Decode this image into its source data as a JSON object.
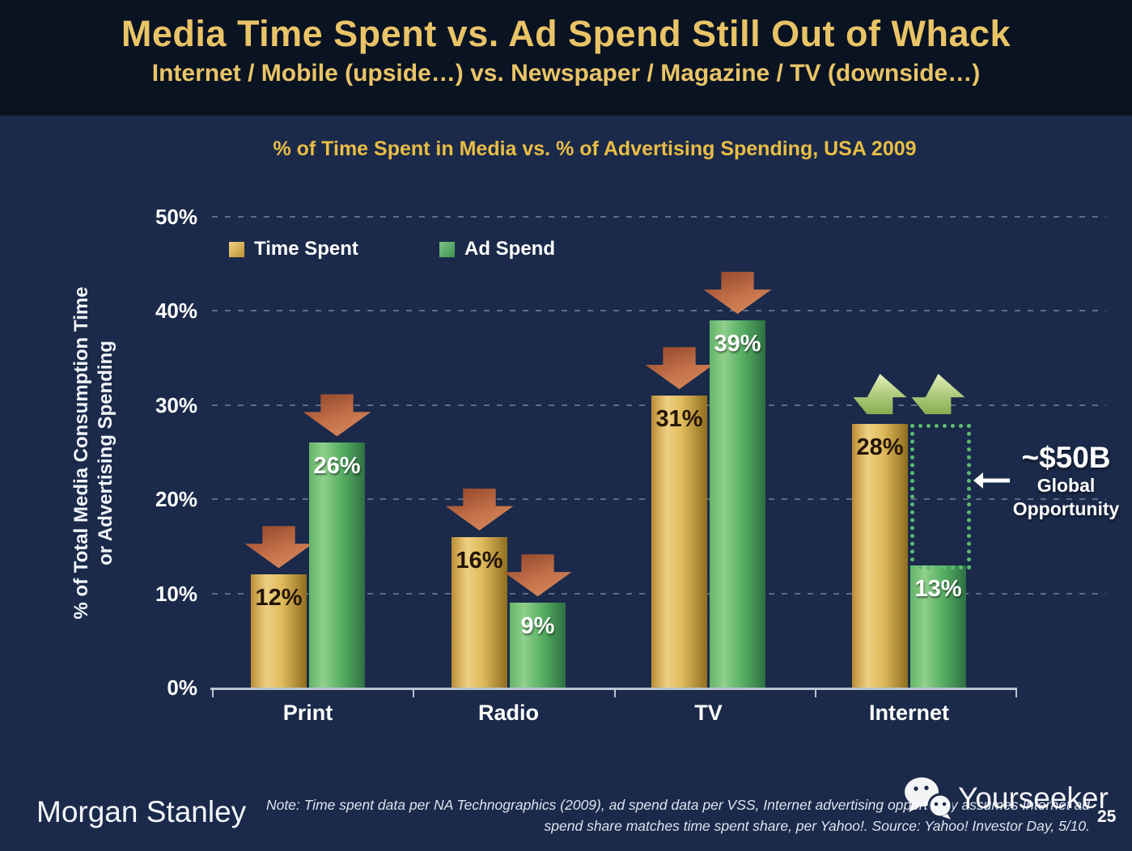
{
  "slide": {
    "title": "Media Time Spent vs. Ad Spend Still Out of Whack",
    "subtitle": "Internet / Mobile (upside…) vs. Newspaper / Magazine / TV (downside…)",
    "page_number": "25"
  },
  "chart_data": {
    "type": "bar",
    "title": "% of Time Spent in Media vs. % of Advertising Spending, USA 2009",
    "categories": [
      "Print",
      "Radio",
      "TV",
      "Internet"
    ],
    "series": [
      {
        "name": "Time Spent",
        "values": [
          12,
          16,
          31,
          28
        ],
        "color": "#e0bb5c",
        "label_style": "dark"
      },
      {
        "name": "Ad Spend",
        "values": [
          26,
          9,
          39,
          13
        ],
        "color": "#55ad62",
        "label_style": "white"
      }
    ],
    "value_suffix": "%",
    "trends": [
      "down",
      "down",
      "down",
      "up"
    ],
    "trend_colors": {
      "down": "#c4714a",
      "up": "#b5d083"
    },
    "ylabel": "% of Total Media Consumption Time or Advertising Spending",
    "ylabel_lines": [
      "% of Total Media Consumption Time",
      "or Advertising Spending"
    ],
    "ytick_labels": [
      "0%",
      "10%",
      "20%",
      "30%",
      "40%",
      "50%"
    ],
    "ylim": [
      0,
      50
    ],
    "grid": "dashed horizontal",
    "legend_position": "top-left inside",
    "annotation": {
      "value": "~$50B",
      "label_line1": "Global",
      "label_line2": "Opportunity",
      "target": "Internet ad spend gap",
      "box_color": "#5bbb72"
    }
  },
  "footer": {
    "brand": "Morgan Stanley",
    "note_line1": "Note: Time spent data per NA Technographics (2009), ad spend data per VSS, Internet advertising opportunity assumes Internet ad",
    "note_line2": "spend share matches time spent share, per Yahoo!. Source: Yahoo! Investor Day, 5/10.",
    "watermark_label": "Yourseeker"
  },
  "colors": {
    "background_chart": "#1b2a4a",
    "background_title": "#0a1322",
    "accent_gold": "#e9c467",
    "axis": "#b9c3d2"
  }
}
